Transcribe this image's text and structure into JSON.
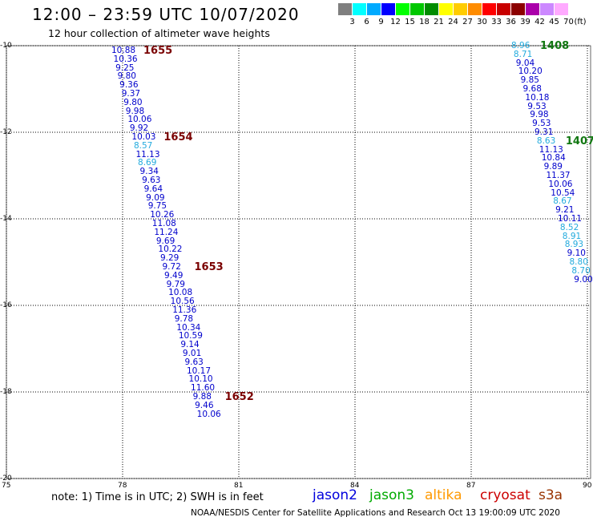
{
  "header": {
    "title": "12:00 – 23:59 UTC 10/07/2020",
    "subtitle": "12 hour collection of altimeter wave heights"
  },
  "scale": {
    "unit_label": "(ft)",
    "items": [
      {
        "label": "3",
        "color": "#7f7f7f"
      },
      {
        "label": "6",
        "color": "#00ffff"
      },
      {
        "label": "9",
        "color": "#00aaff"
      },
      {
        "label": "12",
        "color": "#0000ff"
      },
      {
        "label": "15",
        "color": "#00ff00"
      },
      {
        "label": "18",
        "color": "#00c800"
      },
      {
        "label": "21",
        "color": "#008c00"
      },
      {
        "label": "24",
        "color": "#ffff00"
      },
      {
        "label": "27",
        "color": "#ffcc00"
      },
      {
        "label": "30",
        "color": "#ff8c00"
      },
      {
        "label": "33",
        "color": "#ff0000"
      },
      {
        "label": "36",
        "color": "#c80000"
      },
      {
        "label": "39",
        "color": "#8c0000"
      },
      {
        "label": "42",
        "color": "#aa00aa"
      },
      {
        "label": "45",
        "color": "#cc88ff"
      },
      {
        "label": "70",
        "color": "#ffaaff"
      }
    ]
  },
  "axes": {
    "x_ticks": [
      "75",
      "78",
      "81",
      "84",
      "87",
      "90"
    ],
    "y_ticks": [
      "-10",
      "-12",
      "-14",
      "-16",
      "-18",
      "-20"
    ]
  },
  "colors": {
    "blue": "#0000cc",
    "cyan": "#22aadd",
    "pass_red": "#7a0000",
    "pass_green": "#117711"
  },
  "track_left": {
    "values": [
      {
        "v": "10.88",
        "c": "blue"
      },
      {
        "v": "10.36",
        "c": "blue"
      },
      {
        "v": "9.25",
        "c": "blue"
      },
      {
        "v": "9.80",
        "c": "blue"
      },
      {
        "v": "9.36",
        "c": "blue"
      },
      {
        "v": "9.37",
        "c": "blue"
      },
      {
        "v": "9.80",
        "c": "blue"
      },
      {
        "v": "9.98",
        "c": "blue"
      },
      {
        "v": "10.06",
        "c": "blue"
      },
      {
        "v": "9.92",
        "c": "blue"
      },
      {
        "v": "10.03",
        "c": "blue"
      },
      {
        "v": "8.57",
        "c": "cyan"
      },
      {
        "v": "11.13",
        "c": "blue"
      },
      {
        "v": "8.69",
        "c": "cyan"
      },
      {
        "v": "9.34",
        "c": "blue"
      },
      {
        "v": "9.63",
        "c": "blue"
      },
      {
        "v": "9.64",
        "c": "blue"
      },
      {
        "v": "9.09",
        "c": "blue"
      },
      {
        "v": "9.75",
        "c": "blue"
      },
      {
        "v": "10.26",
        "c": "blue"
      },
      {
        "v": "11.08",
        "c": "blue"
      },
      {
        "v": "11.24",
        "c": "blue"
      },
      {
        "v": "9.69",
        "c": "blue"
      },
      {
        "v": "10.22",
        "c": "blue"
      },
      {
        "v": "9.29",
        "c": "blue"
      },
      {
        "v": "9.72",
        "c": "blue"
      },
      {
        "v": "9.49",
        "c": "blue"
      },
      {
        "v": "9.79",
        "c": "blue"
      },
      {
        "v": "10.08",
        "c": "blue"
      },
      {
        "v": "10.56",
        "c": "blue"
      },
      {
        "v": "11.36",
        "c": "blue"
      },
      {
        "v": "9.78",
        "c": "blue"
      },
      {
        "v": "10.34",
        "c": "blue"
      },
      {
        "v": "10.59",
        "c": "blue"
      },
      {
        "v": "9.14",
        "c": "blue"
      },
      {
        "v": "9.01",
        "c": "blue"
      },
      {
        "v": "9.63",
        "c": "blue"
      },
      {
        "v": "10.17",
        "c": "blue"
      },
      {
        "v": "10.10",
        "c": "blue"
      },
      {
        "v": "11.60",
        "c": "blue"
      },
      {
        "v": "9.88",
        "c": "blue"
      },
      {
        "v": "9.46",
        "c": "blue"
      },
      {
        "v": "10.06",
        "c": "blue"
      }
    ],
    "passes": [
      {
        "label": "1655",
        "row": 0
      },
      {
        "label": "1654",
        "row": 10
      },
      {
        "label": "1653",
        "row": 25
      },
      {
        "label": "1652",
        "row": 40
      }
    ]
  },
  "track_right": {
    "values": [
      {
        "v": "8.96",
        "c": "cyan"
      },
      {
        "v": "8.71",
        "c": "cyan"
      },
      {
        "v": "9.04",
        "c": "blue"
      },
      {
        "v": "10.20",
        "c": "blue"
      },
      {
        "v": "9.85",
        "c": "blue"
      },
      {
        "v": "9.68",
        "c": "blue"
      },
      {
        "v": "10.18",
        "c": "blue"
      },
      {
        "v": "9.53",
        "c": "blue"
      },
      {
        "v": "9.98",
        "c": "blue"
      },
      {
        "v": "9.53",
        "c": "blue"
      },
      {
        "v": "9.31",
        "c": "blue"
      },
      {
        "v": "8.63",
        "c": "cyan"
      },
      {
        "v": "11.13",
        "c": "blue"
      },
      {
        "v": "10.84",
        "c": "blue"
      },
      {
        "v": "9.89",
        "c": "blue"
      },
      {
        "v": "11.37",
        "c": "blue"
      },
      {
        "v": "10.06",
        "c": "blue"
      },
      {
        "v": "10.54",
        "c": "blue"
      },
      {
        "v": "8.67",
        "c": "cyan"
      },
      {
        "v": "9.21",
        "c": "blue"
      },
      {
        "v": "10.11",
        "c": "blue"
      },
      {
        "v": "8.52",
        "c": "cyan"
      },
      {
        "v": "8.91",
        "c": "cyan"
      },
      {
        "v": "8.93",
        "c": "cyan"
      },
      {
        "v": "9.10",
        "c": "blue"
      },
      {
        "v": "8.80",
        "c": "cyan"
      },
      {
        "v": "8.70",
        "c": "cyan"
      },
      {
        "v": "9.00",
        "c": "blue"
      }
    ],
    "passes": [
      {
        "label": "1408",
        "row": 0
      },
      {
        "label": "1407",
        "row": 11
      }
    ]
  },
  "footer": {
    "note": "note: 1) Time is in UTC; 2) SWH is in feet",
    "satellites": [
      {
        "name": "jason2",
        "color": "#0000dd"
      },
      {
        "name": "jason3",
        "color": "#00aa00"
      },
      {
        "name": "altika",
        "color": "#ff9900"
      },
      {
        "name": "cryosat",
        "color": "#cc0000"
      },
      {
        "name": "s3a",
        "color": "#993300"
      }
    ],
    "credit": "NOAA/NESDIS Center for Satellite Applications and Research    Oct 13 19:00:09 UTC 2020"
  }
}
